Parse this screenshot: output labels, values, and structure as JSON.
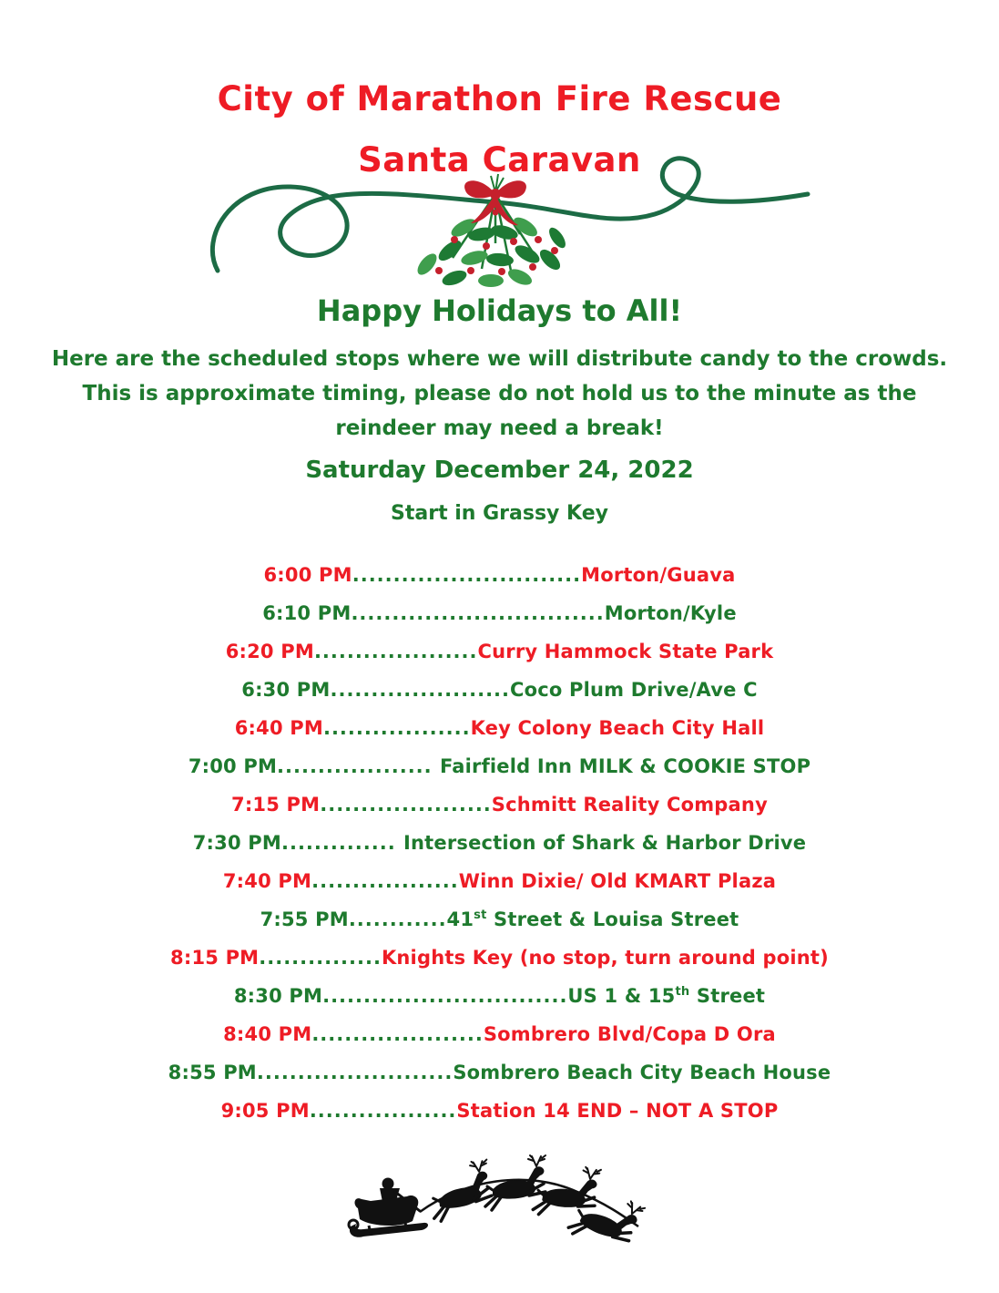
{
  "page": {
    "title1": "City of Marathon Fire Rescue",
    "title2": "Santa Caravan",
    "greeting": "Happy Holidays to All!",
    "intro": "Here are the scheduled stops where we will distribute candy to the crowds. This is approximate timing, please do not hold us to the minute as the reindeer may need a break!",
    "date_line": "Saturday December 24, 2022",
    "start_line": "Start in Grassy Key"
  },
  "colors": {
    "red": "#ee1c25",
    "green": "#1e7a2e",
    "swirl_green": "#1c6b45",
    "leaf_light": "#3f9e4d",
    "leaf_dark": "#1e7a34",
    "berry_red": "#c5202c",
    "silhouette_black": "#111111"
  },
  "decorations": {
    "top": "mistletoe-bundle-with-red-bow-on-green-swirl-line",
    "bottom": "black-silhouette-santa-sleigh-pulled-by-four-reindeer"
  },
  "schedule": {
    "rows": [
      {
        "time": "6:00 PM",
        "dots": "............................",
        "color": "red",
        "loc": [
          {
            "t": "Morton/Guava"
          }
        ]
      },
      {
        "time": "6:10 PM",
        "dots": "...............................",
        "color": "green",
        "loc": [
          {
            "t": "Morton/Kyle"
          }
        ]
      },
      {
        "time": "6:20 PM",
        "dots": "....................",
        "color": "red",
        "loc": [
          {
            "t": "Curry Hammock State Park"
          }
        ]
      },
      {
        "time": "6:30 PM",
        "dots": "......................",
        "color": "green",
        "loc": [
          {
            "t": "Coco Plum Drive/Ave C"
          }
        ]
      },
      {
        "time": "6:40 PM",
        "dots": "..................",
        "color": "red",
        "loc": [
          {
            "t": "Key Colony Beach City Hall"
          }
        ]
      },
      {
        "time": "7:00 PM",
        "dots": "................... ",
        "color": "green",
        "loc": [
          {
            "t": "Fairfield Inn MILK & COOKIE STOP"
          }
        ]
      },
      {
        "time": "7:15 PM",
        "dots": ".....................",
        "color": "red",
        "loc": [
          {
            "t": "Schmitt Reality Company"
          }
        ]
      },
      {
        "time": "7:30 PM",
        "dots": ".............. ",
        "color": "green",
        "loc": [
          {
            "t": "Intersection of Shark & Harbor Drive"
          }
        ]
      },
      {
        "time": "7:40 PM",
        "dots": "..................",
        "color": "red",
        "loc": [
          {
            "t": "Winn Dixie/ Old KMART Plaza"
          }
        ]
      },
      {
        "time": "7:55 PM",
        "dots": "............",
        "color": "green",
        "loc": [
          {
            "t": "41"
          },
          {
            "t": "st",
            "sup": true
          },
          {
            "t": " Street & Louisa Street"
          }
        ]
      },
      {
        "time": "8:15 PM",
        "dots": "...............",
        "color": "red",
        "loc": [
          {
            "t": "Knights Key (no stop, turn around point)"
          }
        ]
      },
      {
        "time": "8:30 PM",
        "dots": "..............................",
        "color": "green",
        "loc": [
          {
            "t": "US 1 & 15"
          },
          {
            "t": "th",
            "sup": true
          },
          {
            "t": " Street"
          }
        ]
      },
      {
        "time": "8:40 PM",
        "dots": ".....................",
        "color": "red",
        "loc": [
          {
            "t": "Sombrero Blvd/Copa D Ora"
          }
        ]
      },
      {
        "time": "8:55 PM",
        "dots": "........................",
        "color": "green",
        "loc": [
          {
            "t": "Sombrero Beach City Beach House"
          }
        ]
      },
      {
        "time": "9:05 PM",
        "dots": "..................",
        "color": "red",
        "loc": [
          {
            "t": "Station 14 END – NOT A STOP"
          }
        ]
      }
    ]
  }
}
